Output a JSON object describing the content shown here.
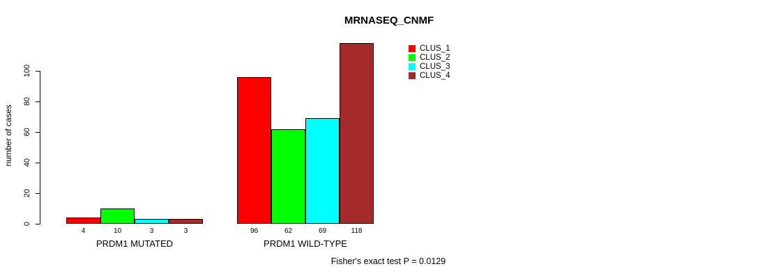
{
  "chart_data": {
    "type": "bar",
    "title": "MRNASEQ_CNMF",
    "ylabel": "number of cases",
    "xlabel": "",
    "yticks": [
      0,
      20,
      40,
      60,
      80,
      100
    ],
    "ylim": [
      0,
      100
    ],
    "grid": false,
    "legend_position": "top-right",
    "categories": [
      "PRDM1 MUTATED",
      "PRDM1 WILD-TYPE"
    ],
    "series": [
      {
        "name": "CLUS_1",
        "color": "#FF0000",
        "values": [
          4,
          96
        ]
      },
      {
        "name": "CLUS_2",
        "color": "#00FF00",
        "values": [
          10,
          62
        ]
      },
      {
        "name": "CLUS_3",
        "color": "#00FFFF",
        "values": [
          3,
          69
        ]
      },
      {
        "name": "CLUS_4",
        "color": "#A52A2A",
        "values": [
          3,
          118
        ]
      }
    ],
    "bar_value_labels": [
      [
        "4",
        "10",
        "3",
        "3"
      ],
      [
        "96",
        "62",
        "69",
        "118"
      ]
    ],
    "annotation": "Fisher's exact test P = 0.0129"
  }
}
